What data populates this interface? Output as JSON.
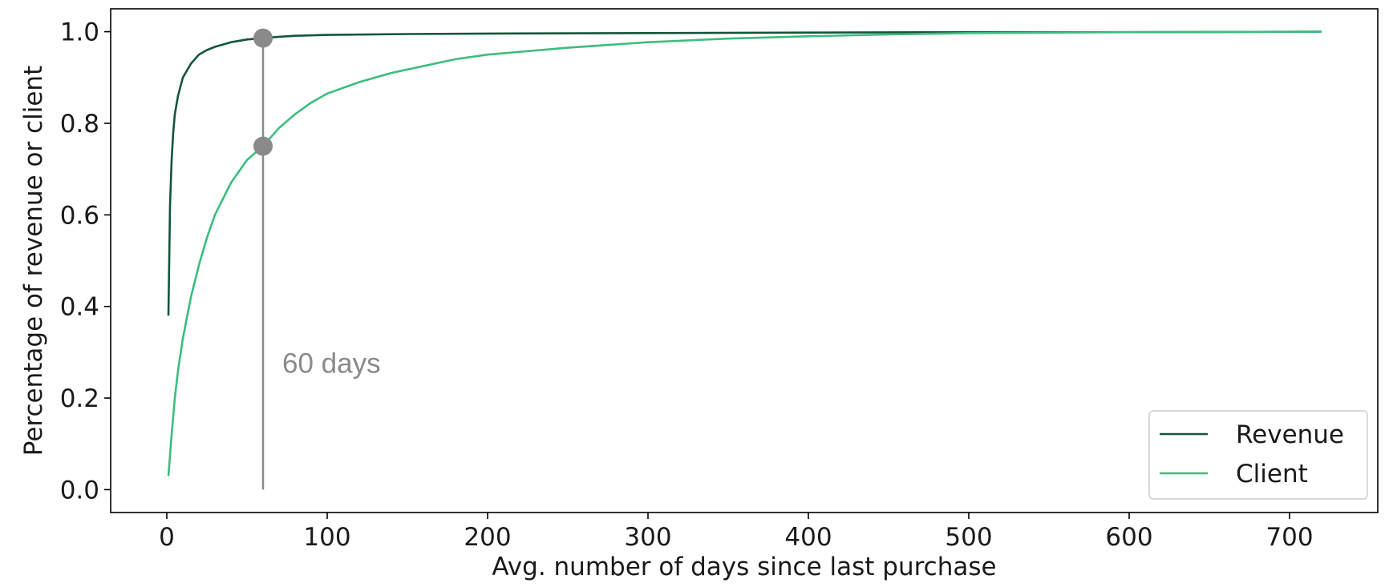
{
  "chart_data": {
    "type": "line",
    "xlabel": "Avg. number of days since last purchase",
    "ylabel": "Percentage of revenue or client",
    "xlim": [
      -35,
      755
    ],
    "ylim": [
      -0.05,
      1.05
    ],
    "x_ticks": [
      0,
      100,
      200,
      300,
      400,
      500,
      600,
      700
    ],
    "x_tick_labels": [
      "0",
      "100",
      "200",
      "300",
      "400",
      "500",
      "600",
      "700"
    ],
    "y_ticks": [
      0.0,
      0.2,
      0.4,
      0.6,
      0.8,
      1.0
    ],
    "y_tick_labels": [
      "0.0",
      "0.2",
      "0.4",
      "0.6",
      "0.8",
      "1.0"
    ],
    "grid": false,
    "legend_position": "bottom-right",
    "series": [
      {
        "name": "Revenue",
        "color": "#14553a",
        "x": [
          1,
          2,
          3,
          4,
          5,
          7,
          10,
          15,
          20,
          25,
          30,
          40,
          50,
          60,
          70,
          80,
          100,
          150,
          200,
          300,
          400,
          500,
          600,
          720
        ],
        "y": [
          0.38,
          0.62,
          0.72,
          0.78,
          0.82,
          0.86,
          0.9,
          0.93,
          0.95,
          0.96,
          0.967,
          0.977,
          0.983,
          0.986,
          0.989,
          0.991,
          0.993,
          0.995,
          0.996,
          0.997,
          0.998,
          0.999,
          0.999,
          1.0
        ]
      },
      {
        "name": "Client",
        "color": "#3cbc7d",
        "x": [
          1,
          3,
          5,
          7,
          10,
          15,
          20,
          25,
          30,
          40,
          50,
          60,
          70,
          80,
          90,
          100,
          120,
          140,
          160,
          180,
          200,
          250,
          300,
          350,
          400,
          450,
          500,
          600,
          720
        ],
        "y": [
          0.03,
          0.12,
          0.2,
          0.26,
          0.33,
          0.42,
          0.49,
          0.55,
          0.6,
          0.67,
          0.72,
          0.75,
          0.79,
          0.82,
          0.845,
          0.865,
          0.89,
          0.91,
          0.925,
          0.94,
          0.95,
          0.965,
          0.977,
          0.985,
          0.99,
          0.994,
          0.997,
          0.999,
          1.0
        ]
      }
    ],
    "annotations": [
      {
        "text": "60 days",
        "x": 60,
        "color": "#8a8a8a",
        "points": [
          {
            "series": "Revenue",
            "x": 60,
            "y": 0.986
          },
          {
            "series": "Client",
            "x": 60,
            "y": 0.75
          }
        ],
        "line_y": [
          0.0,
          0.986
        ],
        "text_x": 72,
        "text_y": 0.255
      }
    ]
  }
}
